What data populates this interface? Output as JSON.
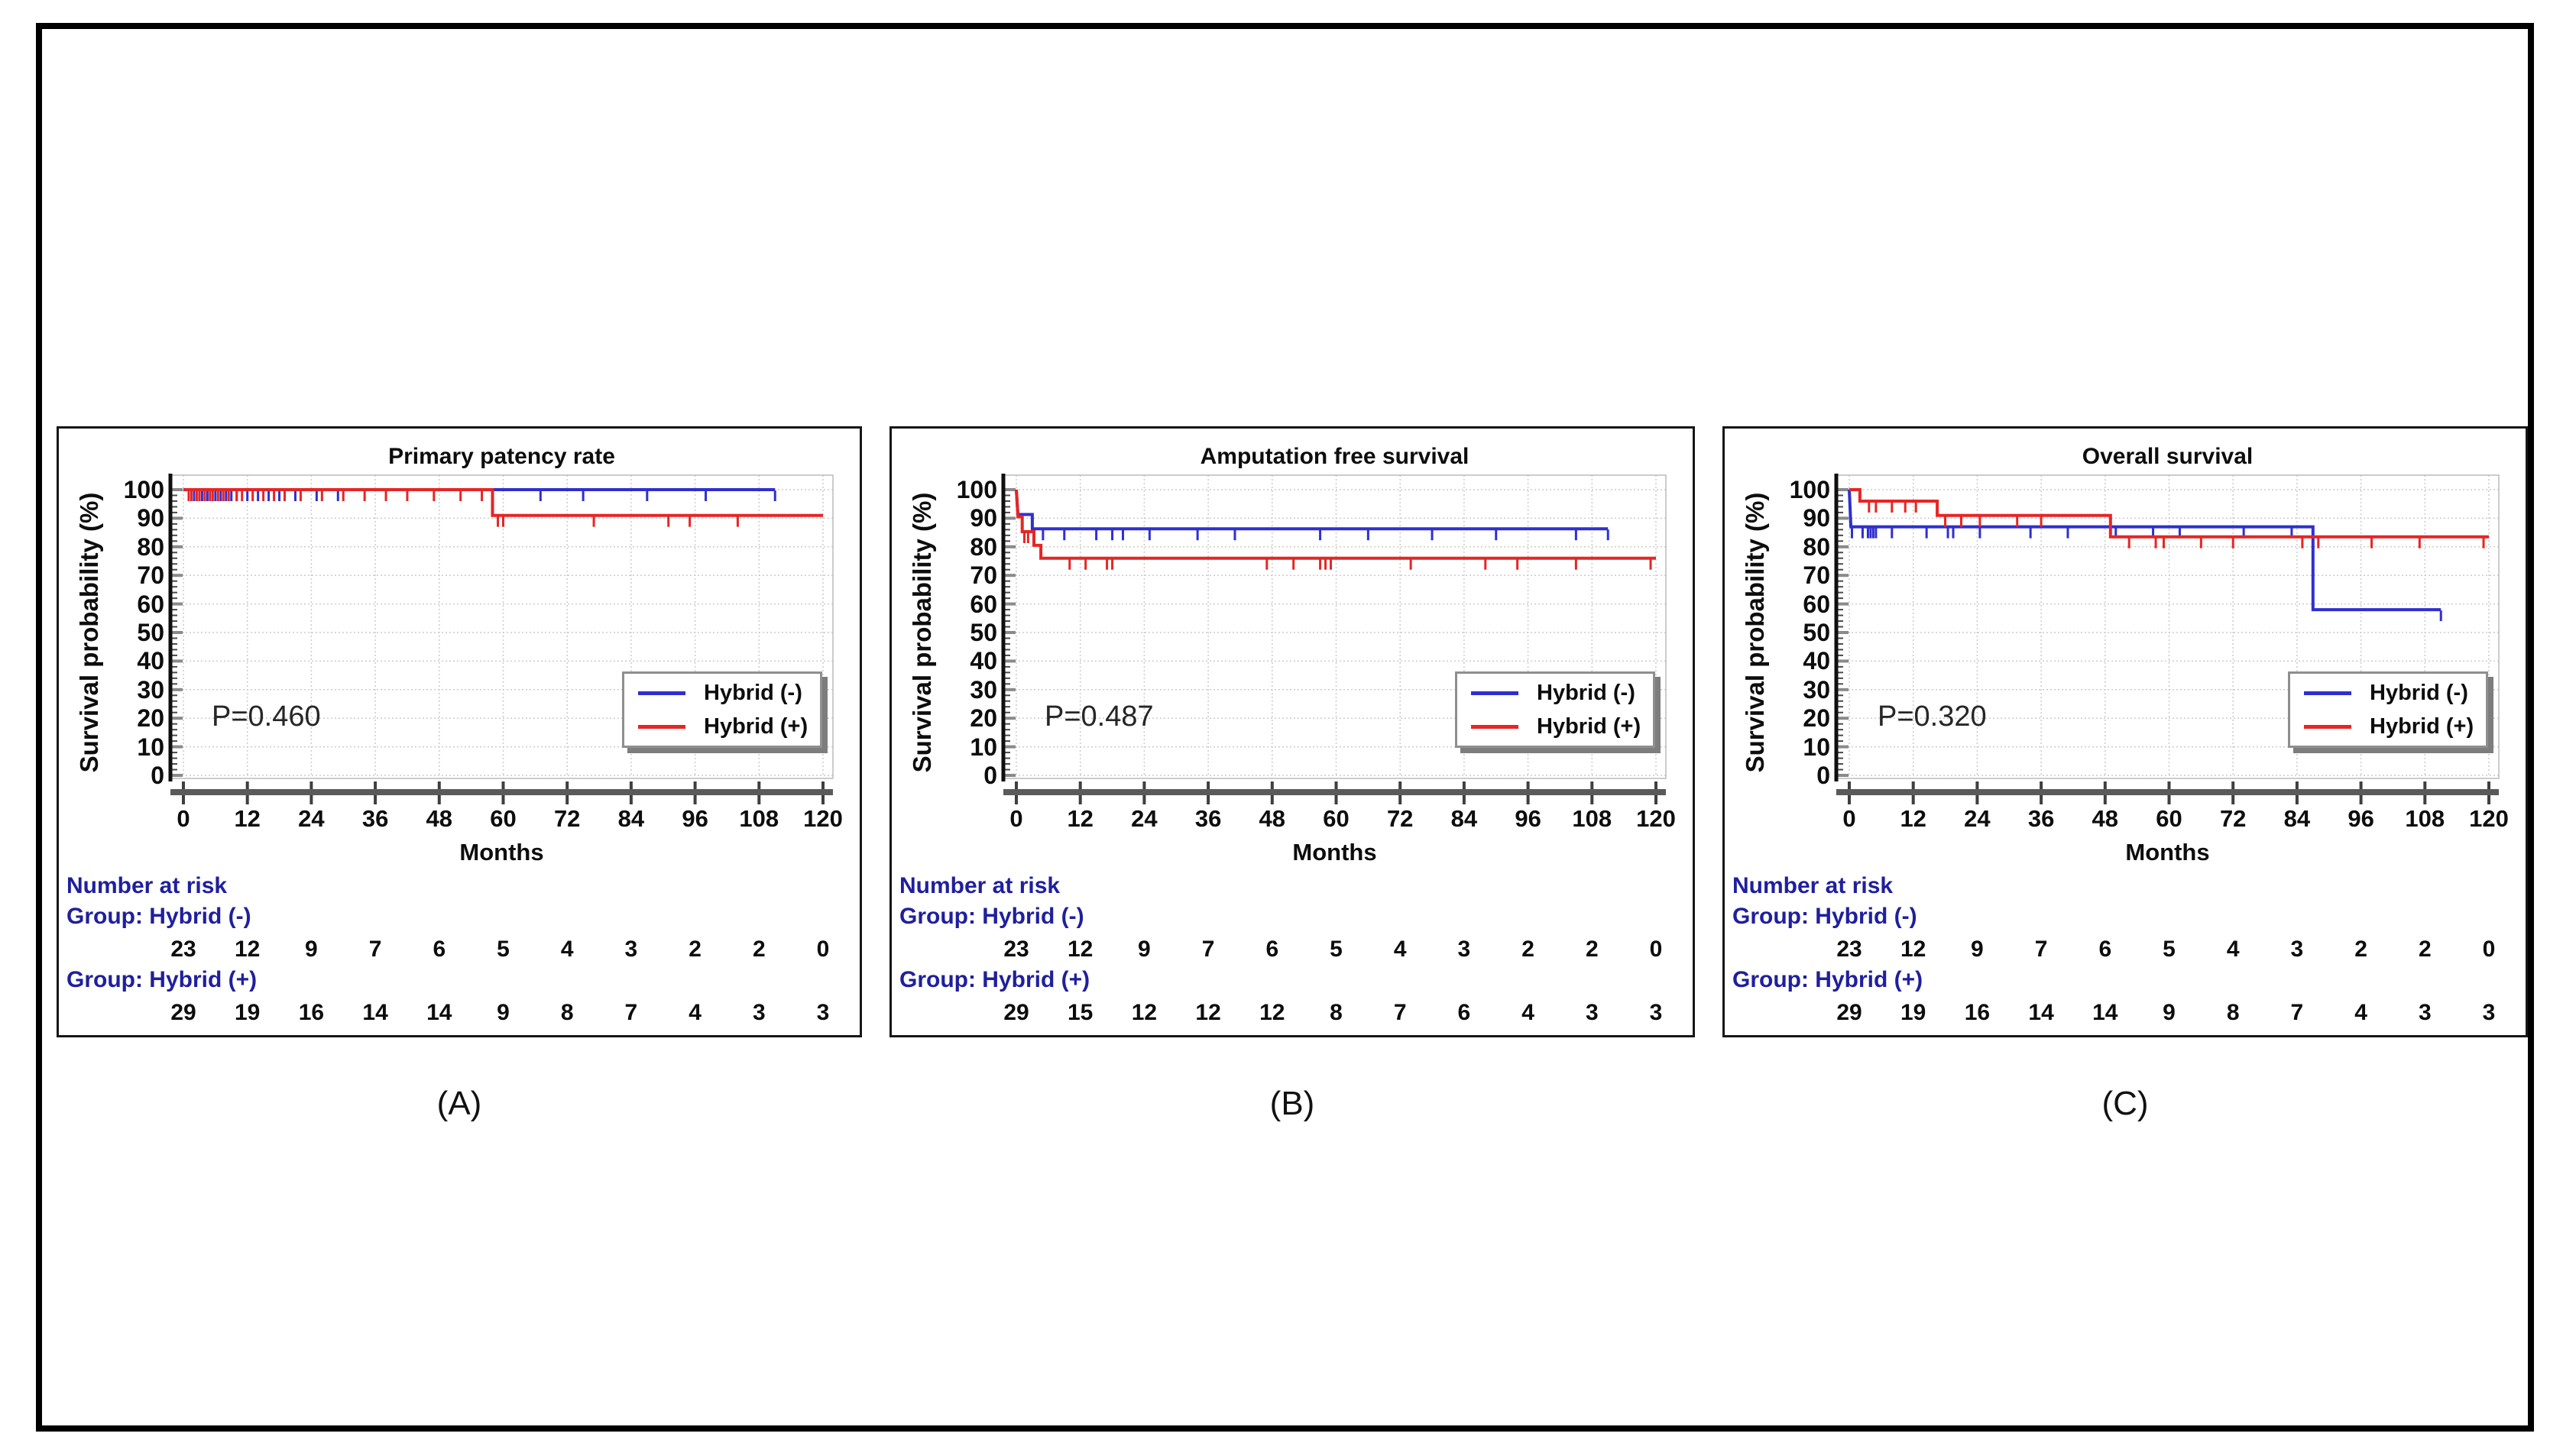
{
  "figure": {
    "background": "#ffffff",
    "border_color": "#000000",
    "panel_border_color": "#161616",
    "risk_label_color": "#1f1f9e",
    "axis_bar_color": "#5a5a5a",
    "grid_color": "#cccccc"
  },
  "legend": {
    "items": [
      {
        "label": "Hybrid (-)",
        "color": "#2f2fd0"
      },
      {
        "label": "Hybrid (+)",
        "color": "#e62525"
      }
    ]
  },
  "chart_data": [
    {
      "type": "line",
      "subtype": "kaplan_meier_step",
      "panel_label": "(A)",
      "title": "Primary patency rate",
      "p_value": "P=0.460",
      "xlabel": "Months",
      "ylabel": "Survival probability (%)",
      "xlim": [
        0,
        120
      ],
      "ylim": [
        0,
        100
      ],
      "xticks": [
        0,
        12,
        24,
        36,
        48,
        60,
        72,
        84,
        96,
        108,
        120
      ],
      "yticks": [
        0,
        10,
        20,
        30,
        40,
        50,
        60,
        70,
        80,
        90,
        100
      ],
      "grid": true,
      "legend_position": "lower right",
      "series": [
        {
          "name": "Hybrid (-)",
          "color": "#2f2fd0",
          "steps": [
            [
              0,
              100
            ],
            [
              111,
              100
            ]
          ],
          "censors": [
            [
              2,
              100
            ],
            [
              3,
              100
            ],
            [
              3.5,
              100
            ],
            [
              4,
              100
            ],
            [
              4.5,
              100
            ],
            [
              5,
              100
            ],
            [
              6,
              100
            ],
            [
              7,
              100
            ],
            [
              8,
              100
            ],
            [
              9,
              100
            ],
            [
              10,
              100
            ],
            [
              12,
              100
            ],
            [
              14,
              100
            ],
            [
              16,
              100
            ],
            [
              18,
              100
            ],
            [
              21,
              100
            ],
            [
              25,
              100
            ],
            [
              29,
              100
            ],
            [
              67,
              100
            ],
            [
              75,
              100
            ],
            [
              87,
              100
            ],
            [
              98,
              100
            ],
            [
              111,
              100
            ]
          ]
        },
        {
          "name": "Hybrid (+)",
          "color": "#e62525",
          "steps": [
            [
              0,
              100
            ],
            [
              58,
              100
            ],
            [
              58,
              91
            ],
            [
              120,
              91
            ]
          ],
          "censors": [
            [
              1,
              100
            ],
            [
              1.5,
              100
            ],
            [
              2.5,
              100
            ],
            [
              3,
              100
            ],
            [
              4,
              100
            ],
            [
              5,
              100
            ],
            [
              5.5,
              100
            ],
            [
              6.5,
              100
            ],
            [
              7.5,
              100
            ],
            [
              8.5,
              100
            ],
            [
              10,
              100
            ],
            [
              11,
              100
            ],
            [
              13,
              100
            ],
            [
              15,
              100
            ],
            [
              17,
              100
            ],
            [
              19,
              100
            ],
            [
              22,
              100
            ],
            [
              26,
              100
            ],
            [
              30,
              100
            ],
            [
              34,
              100
            ],
            [
              38,
              100
            ],
            [
              42,
              100
            ],
            [
              47,
              100
            ],
            [
              52,
              100
            ],
            [
              56,
              100
            ],
            [
              59,
              91
            ],
            [
              60,
              91
            ],
            [
              77,
              91
            ],
            [
              91,
              91
            ],
            [
              95,
              91
            ],
            [
              104,
              91
            ]
          ]
        }
      ],
      "risk_table": {
        "header": "Number at risk",
        "time_points": [
          0,
          12,
          24,
          36,
          48,
          60,
          72,
          84,
          96,
          108,
          120
        ],
        "groups": [
          {
            "label": "Group: Hybrid (-)",
            "counts": [
              "23",
              "12",
              "9",
              "7",
              "6",
              "5",
              "4",
              "3",
              "2",
              "2",
              "0"
            ]
          },
          {
            "label": "Group: Hybrid (+)",
            "counts": [
              "29",
              "19",
              "16",
              "14",
              "14",
              "9",
              "8",
              "7",
              "4",
              "3",
              "3"
            ]
          }
        ]
      }
    },
    {
      "type": "line",
      "subtype": "kaplan_meier_step",
      "panel_label": "(B)",
      "title": "Amputation free survival",
      "p_value": "P=0.487",
      "xlabel": "Months",
      "ylabel": "Survival probability (%)",
      "xlim": [
        0,
        120
      ],
      "ylim": [
        0,
        100
      ],
      "xticks": [
        0,
        12,
        24,
        36,
        48,
        60,
        72,
        84,
        96,
        108,
        120
      ],
      "yticks": [
        0,
        10,
        20,
        30,
        40,
        50,
        60,
        70,
        80,
        90,
        100
      ],
      "grid": true,
      "legend_position": "lower right",
      "series": [
        {
          "name": "Hybrid (-)",
          "color": "#2f2fd0",
          "steps": [
            [
              0,
              100
            ],
            [
              0.3,
              91.3
            ],
            [
              3,
              91.3
            ],
            [
              3,
              86.3
            ],
            [
              111,
              86.3
            ]
          ],
          "censors": [
            [
              5,
              86.3
            ],
            [
              9,
              86.3
            ],
            [
              15,
              86.3
            ],
            [
              18,
              86.3
            ],
            [
              20,
              86.3
            ],
            [
              25,
              86.3
            ],
            [
              34,
              86.3
            ],
            [
              41,
              86.3
            ],
            [
              57,
              86.3
            ],
            [
              66,
              86.3
            ],
            [
              78,
              86.3
            ],
            [
              90,
              86.3
            ],
            [
              105,
              86.3
            ],
            [
              111,
              86.3
            ]
          ]
        },
        {
          "name": "Hybrid (+)",
          "color": "#e62525",
          "steps": [
            [
              0,
              100
            ],
            [
              0.3,
              90.5
            ],
            [
              1.1,
              90.5
            ],
            [
              1.1,
              85.3
            ],
            [
              3.3,
              85.3
            ],
            [
              3.3,
              80.5
            ],
            [
              4.6,
              80.5
            ],
            [
              4.6,
              76
            ],
            [
              120,
              76
            ]
          ],
          "censors": [
            [
              1.5,
              85.3
            ],
            [
              2.2,
              85.3
            ],
            [
              10,
              76
            ],
            [
              13,
              76
            ],
            [
              17,
              76
            ],
            [
              18,
              76
            ],
            [
              47,
              76
            ],
            [
              52,
              76
            ],
            [
              57,
              76
            ],
            [
              58,
              76
            ],
            [
              59,
              76
            ],
            [
              74,
              76
            ],
            [
              88,
              76
            ],
            [
              94,
              76
            ],
            [
              105,
              76
            ],
            [
              119,
              76
            ]
          ]
        }
      ],
      "risk_table": {
        "header": "Number at risk",
        "time_points": [
          0,
          12,
          24,
          36,
          48,
          60,
          72,
          84,
          96,
          108,
          120
        ],
        "groups": [
          {
            "label": "Group: Hybrid (-)",
            "counts": [
              "23",
              "12",
              "9",
              "7",
              "6",
              "5",
              "4",
              "3",
              "2",
              "2",
              "0"
            ]
          },
          {
            "label": "Group: Hybrid (+)",
            "counts": [
              "29",
              "15",
              "12",
              "12",
              "12",
              "8",
              "7",
              "6",
              "4",
              "3",
              "3"
            ]
          }
        ]
      }
    },
    {
      "type": "line",
      "subtype": "kaplan_meier_step",
      "panel_label": "(C)",
      "title": "Overall survival",
      "p_value": "P=0.320",
      "xlabel": "Months",
      "ylabel": "Survival probability (%)",
      "xlim": [
        0,
        120
      ],
      "ylim": [
        0,
        100
      ],
      "xticks": [
        0,
        12,
        24,
        36,
        48,
        60,
        72,
        84,
        96,
        108,
        120
      ],
      "yticks": [
        0,
        10,
        20,
        30,
        40,
        50,
        60,
        70,
        80,
        90,
        100
      ],
      "grid": true,
      "legend_position": "lower right",
      "series": [
        {
          "name": "Hybrid (-)",
          "color": "#2f2fd0",
          "steps": [
            [
              0,
              100
            ],
            [
              0.3,
              87
            ],
            [
              87,
              87
            ],
            [
              87,
              58
            ],
            [
              111,
              58
            ]
          ],
          "censors": [
            [
              0.5,
              87
            ],
            [
              2.5,
              87
            ],
            [
              3.5,
              87
            ],
            [
              4,
              87
            ],
            [
              4.5,
              87
            ],
            [
              5,
              87
            ],
            [
              8,
              87
            ],
            [
              14.5,
              87
            ],
            [
              18.5,
              87
            ],
            [
              19.5,
              87
            ],
            [
              24.5,
              87
            ],
            [
              34,
              87
            ],
            [
              41,
              87
            ],
            [
              50,
              87
            ],
            [
              57,
              87
            ],
            [
              62,
              87
            ],
            [
              74,
              87
            ],
            [
              83,
              87
            ],
            [
              111,
              58
            ]
          ]
        },
        {
          "name": "Hybrid (+)",
          "color": "#e62525",
          "steps": [
            [
              0,
              100
            ],
            [
              2,
              100
            ],
            [
              2,
              96
            ],
            [
              16.5,
              96
            ],
            [
              16.5,
              91
            ],
            [
              49,
              91
            ],
            [
              49,
              83.5
            ],
            [
              120,
              83.5
            ]
          ],
          "censors": [
            [
              3.7,
              96
            ],
            [
              5,
              96
            ],
            [
              8,
              96
            ],
            [
              10.5,
              96
            ],
            [
              12.5,
              96
            ],
            [
              18,
              91
            ],
            [
              21,
              91
            ],
            [
              24.5,
              91
            ],
            [
              31.5,
              91
            ],
            [
              36,
              91
            ],
            [
              52.5,
              83.5
            ],
            [
              57.5,
              83.5
            ],
            [
              59,
              83.5
            ],
            [
              66,
              83.5
            ],
            [
              72,
              83.5
            ],
            [
              85,
              83.5
            ],
            [
              88,
              83.5
            ],
            [
              98,
              83.5
            ],
            [
              107,
              83.5
            ],
            [
              119,
              83.5
            ]
          ]
        }
      ],
      "risk_table": {
        "header": "Number at risk",
        "time_points": [
          0,
          12,
          24,
          36,
          48,
          60,
          72,
          84,
          96,
          108,
          120
        ],
        "groups": [
          {
            "label": "Group: Hybrid (-)",
            "counts": [
              "23",
              "12",
              "9",
              "7",
              "6",
              "5",
              "4",
              "3",
              "2",
              "2",
              "0"
            ]
          },
          {
            "label": "Group: Hybrid (+)",
            "counts": [
              "29",
              "19",
              "16",
              "14",
              "14",
              "9",
              "8",
              "7",
              "4",
              "3",
              "3"
            ]
          }
        ]
      }
    }
  ]
}
